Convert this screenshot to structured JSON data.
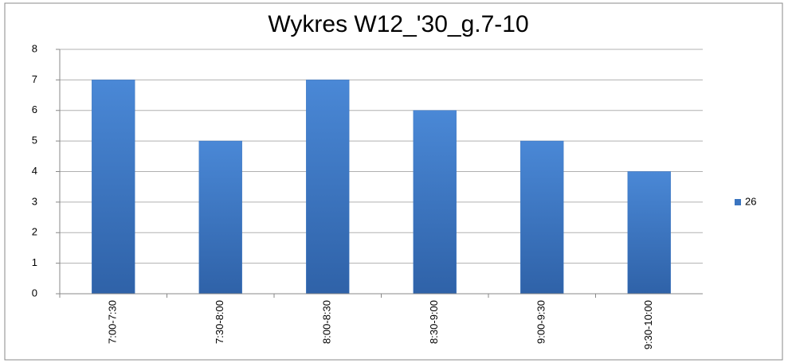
{
  "chart_data": {
    "type": "bar",
    "title": "Wykres W12_'30_g.7-10",
    "categories": [
      "7:00-7:30",
      "7:30-8:00",
      "8:00-8:30",
      "8:30-9:00",
      "9:00-9:30",
      "9:30-10:00"
    ],
    "series": [
      {
        "name": "26",
        "color": "#3b75c0",
        "values": [
          7,
          5,
          7,
          6,
          5,
          4
        ]
      }
    ],
    "ylim": [
      0,
      8
    ],
    "yticks": [
      0,
      1,
      2,
      3,
      4,
      5,
      6,
      7,
      8
    ],
    "grid": true,
    "legend": "right"
  }
}
